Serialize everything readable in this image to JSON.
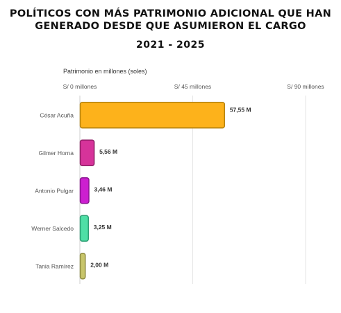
{
  "header": {
    "title_line1": "POLÍTICOS CON MÁS PATRIMONIO ADICIONAL QUE HAN",
    "title_line2": "GENERADO DESDE QUE ASUMIERON EL CARGO",
    "subtitle": "2021 - 2025"
  },
  "chart_data": {
    "type": "bar",
    "orientation": "horizontal",
    "title": "POLÍTICOS CON MÁS PATRIMONIO ADICIONAL QUE HAN GENERADO DESDE QUE ASUMIERON EL CARGO",
    "subtitle": "2021 - 2025",
    "axis_title": "Patrimonio en millones (soles)",
    "xlim": [
      0,
      90
    ],
    "ticks": [
      {
        "value": 0,
        "label": "S/ 0 millones"
      },
      {
        "value": 45,
        "label": "S/ 45 millones"
      },
      {
        "value": 90,
        "label": "S/ 90 millones"
      }
    ],
    "categories": [
      "César Acuña",
      "Gilmer Horna",
      "Antonio Pulgar",
      "Werner Salcedo",
      "Tania Ramírez"
    ],
    "values": [
      57.55,
      5.56,
      3.46,
      3.25,
      2.0
    ],
    "value_labels": [
      "57,55 M",
      "5,56 M",
      "3,46 M",
      "3,25 M",
      "2,00 M"
    ],
    "colors": [
      "#FDB21B",
      "#D6339A",
      "#CC1FD0",
      "#4FDFA6",
      "#C8C56B"
    ],
    "stroke_colors": [
      "#B5820E",
      "#8E1F66",
      "#8A1590",
      "#2C9E73",
      "#8E8B40"
    ],
    "grid": true
  }
}
